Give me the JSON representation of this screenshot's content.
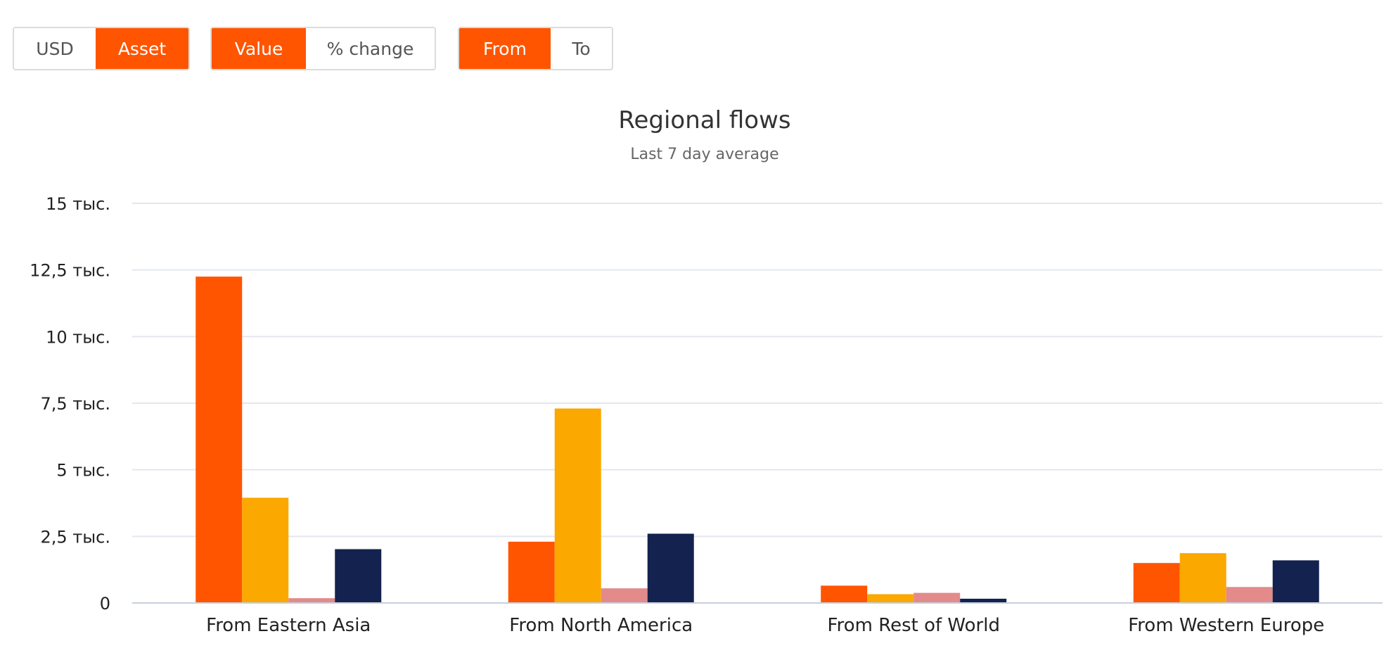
{
  "controls": {
    "groups": [
      {
        "name": "unit-toggle",
        "buttons": [
          {
            "label": "USD",
            "active": false
          },
          {
            "label": "Asset",
            "active": true
          }
        ]
      },
      {
        "name": "measure-toggle",
        "buttons": [
          {
            "label": "Value",
            "active": true
          },
          {
            "label": "% change",
            "active": false
          }
        ]
      },
      {
        "name": "direction-toggle",
        "buttons": [
          {
            "label": "From",
            "active": true
          },
          {
            "label": "To",
            "active": false
          }
        ]
      }
    ],
    "active_color": "#ff5500"
  },
  "chart_data": {
    "type": "bar",
    "title": "Regional flows",
    "subtitle": "Last 7 day average",
    "categories": [
      "From Eastern Asia",
      "From North America",
      "From Rest of World",
      "From Western Europe"
    ],
    "series": [
      {
        "color": "#ff5500",
        "values": [
          12250,
          2300,
          650,
          1500
        ]
      },
      {
        "color": "#fba800",
        "values": [
          3950,
          7300,
          330,
          1870
        ]
      },
      {
        "color": "#e38a8a",
        "values": [
          180,
          550,
          380,
          600
        ]
      },
      {
        "color": "#14224f",
        "values": [
          2020,
          2600,
          160,
          1600
        ]
      }
    ],
    "ylim": [
      0,
      15000
    ],
    "yticks": [
      {
        "value": 0,
        "label": "0"
      },
      {
        "value": 2500,
        "label": "2,5 тыс."
      },
      {
        "value": 5000,
        "label": "5 тыс."
      },
      {
        "value": 7500,
        "label": "7,5 тыс."
      },
      {
        "value": 10000,
        "label": "10 тыс."
      },
      {
        "value": 12500,
        "label": "12,5 тыс."
      },
      {
        "value": 15000,
        "label": "15 тыс."
      }
    ],
    "grid": true,
    "legend": "none"
  }
}
